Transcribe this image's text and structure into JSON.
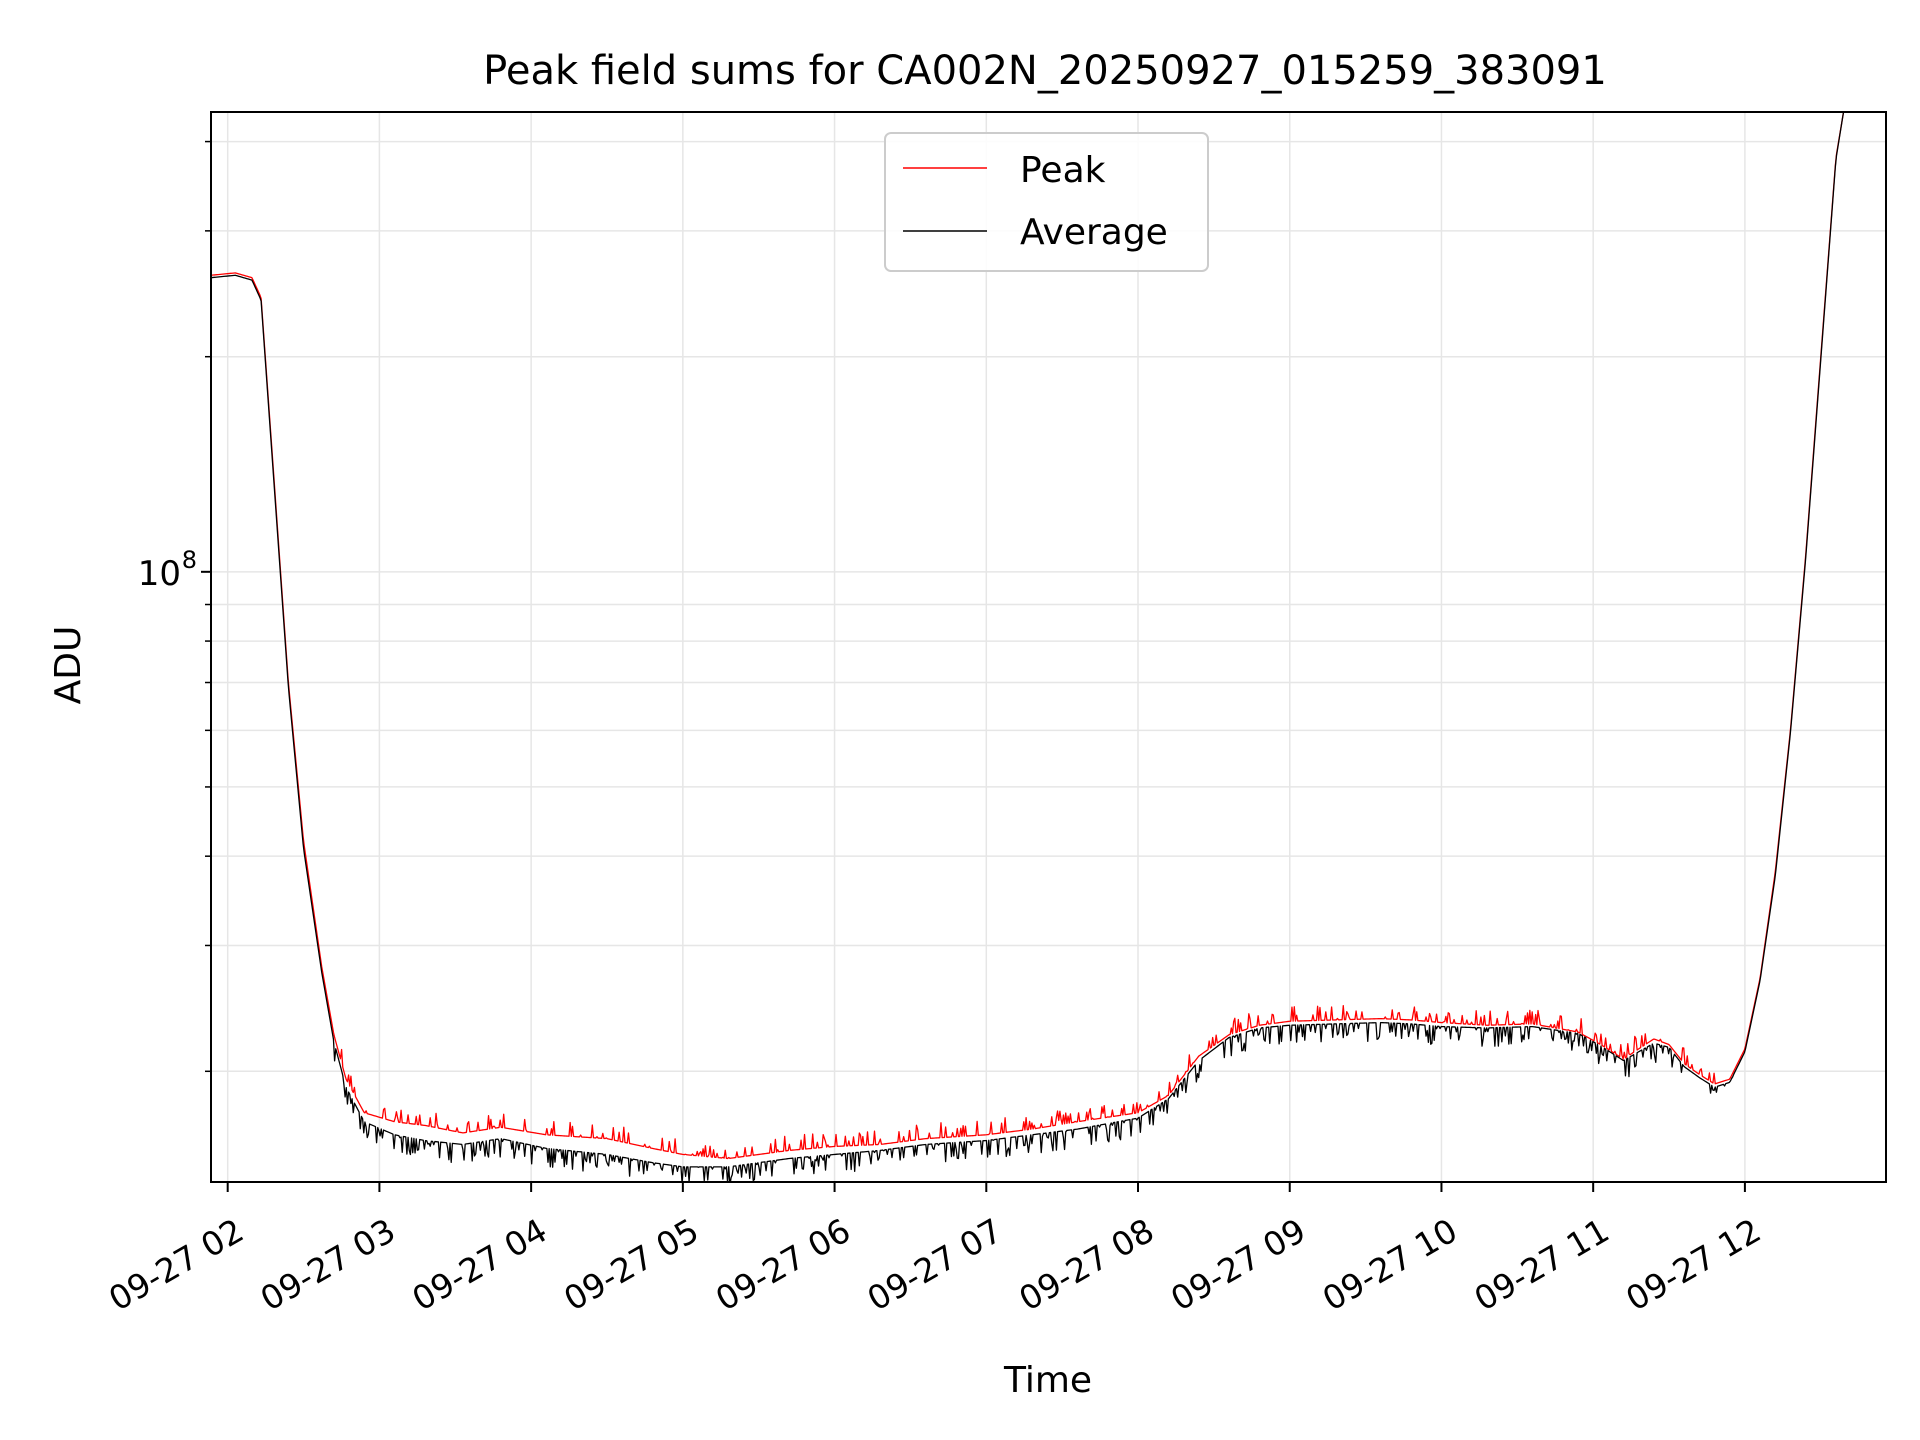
{
  "chart_data": {
    "type": "line",
    "title": "Peak field sums for CA002N_20250927_015259_383091",
    "xlabel": "Time",
    "ylabel": "ADU",
    "yscale": "log",
    "xlim": [
      1.89,
      12.93
    ],
    "ylim": [
      14000000.0,
      440000000.0
    ],
    "grid": true,
    "legend_position": "top-center",
    "x_ticks": [
      {
        "value": 2,
        "label": "09-27 02"
      },
      {
        "value": 3,
        "label": "09-27 03"
      },
      {
        "value": 4,
        "label": "09-27 04"
      },
      {
        "value": 5,
        "label": "09-27 05"
      },
      {
        "value": 6,
        "label": "09-27 06"
      },
      {
        "value": 7,
        "label": "09-27 07"
      },
      {
        "value": 8,
        "label": "09-27 08"
      },
      {
        "value": 9,
        "label": "09-27 09"
      },
      {
        "value": 10,
        "label": "09-27 10"
      },
      {
        "value": 11,
        "label": "09-27 11"
      },
      {
        "value": 12,
        "label": "09-27 12"
      }
    ],
    "y_major_ticks": [
      {
        "value": 100000000,
        "base": "10",
        "exp": "8"
      }
    ],
    "y_minor_ticks": [
      20000000,
      30000000,
      40000000,
      50000000,
      60000000,
      70000000,
      80000000,
      90000000,
      200000000,
      300000000,
      400000000
    ],
    "series": [
      {
        "name": "Peak",
        "color": "#ff0000",
        "spikes_up": true,
        "x": [
          1.89,
          2.05,
          2.16,
          2.22,
          2.3,
          2.4,
          2.5,
          2.62,
          2.7,
          2.78,
          2.9,
          3.1,
          3.3,
          3.55,
          3.8,
          4.1,
          4.5,
          4.8,
          5.0,
          5.3,
          5.7,
          6.0,
          6.3,
          6.6,
          7.0,
          7.3,
          7.6,
          8.0,
          8.2,
          8.4,
          8.6,
          8.8,
          9.0,
          9.3,
          9.6,
          9.8,
          10.0,
          10.3,
          10.6,
          10.9,
          11.05,
          11.2,
          11.3,
          11.4,
          11.5,
          11.6,
          11.7,
          11.8,
          11.9,
          12.0,
          12.1,
          12.2,
          12.3,
          12.4,
          12.5,
          12.6,
          12.65
        ],
        "values": [
          260000000,
          262000000,
          258000000,
          242000000,
          140000000,
          70000000,
          42000000,
          28000000,
          22500000,
          19500000,
          17500000,
          17000000,
          16800000,
          16400000,
          16700000,
          16300000,
          16100000,
          15600000,
          15300000,
          15100000,
          15500000,
          15700000,
          15800000,
          16100000,
          16300000,
          16600000,
          17000000,
          17500000,
          18500000,
          21000000,
          22500000,
          23200000,
          23500000,
          23600000,
          23700000,
          23600000,
          23400000,
          23200000,
          23300000,
          22700000,
          21800000,
          20800000,
          21500000,
          22200000,
          21800000,
          20500000,
          19800000,
          19200000,
          19500000,
          21500000,
          27000000,
          38000000,
          60000000,
          105000000,
          200000000,
          380000000,
          440000000
        ]
      },
      {
        "name": "Average",
        "color": "#000000",
        "spikes_down": true,
        "x": [
          1.89,
          2.05,
          2.16,
          2.22,
          2.3,
          2.4,
          2.5,
          2.62,
          2.7,
          2.78,
          2.9,
          3.1,
          3.3,
          3.55,
          3.8,
          4.1,
          4.5,
          4.8,
          5.0,
          5.3,
          5.7,
          6.0,
          6.3,
          6.6,
          7.0,
          7.3,
          7.6,
          8.0,
          8.2,
          8.4,
          8.6,
          8.8,
          9.0,
          9.3,
          9.6,
          9.8,
          10.0,
          10.3,
          10.6,
          10.9,
          11.05,
          11.2,
          11.3,
          11.4,
          11.5,
          11.6,
          11.7,
          11.8,
          11.9,
          12.0,
          12.1,
          12.2,
          12.3,
          12.4,
          12.5,
          12.6,
          12.65
        ],
        "values": [
          258000000,
          260000000,
          256000000,
          240000000,
          138000000,
          69000000,
          41000000,
          27500000,
          22000000,
          19000000,
          17000000,
          16300000,
          16000000,
          15800000,
          16100000,
          15600000,
          15300000,
          14900000,
          14700000,
          14700000,
          15100000,
          15300000,
          15500000,
          15800000,
          16000000,
          16300000,
          16600000,
          17200000,
          18300000,
          20700000,
          22300000,
          23000000,
          23200000,
          23300000,
          23400000,
          23300000,
          23100000,
          23000000,
          23100000,
          22600000,
          21700000,
          20700000,
          21300000,
          21900000,
          21600000,
          20300000,
          19600000,
          19000000,
          19300000,
          21300000,
          26800000,
          37500000,
          59500000,
          104000000,
          198000000,
          378000000,
          440000000
        ]
      }
    ]
  }
}
